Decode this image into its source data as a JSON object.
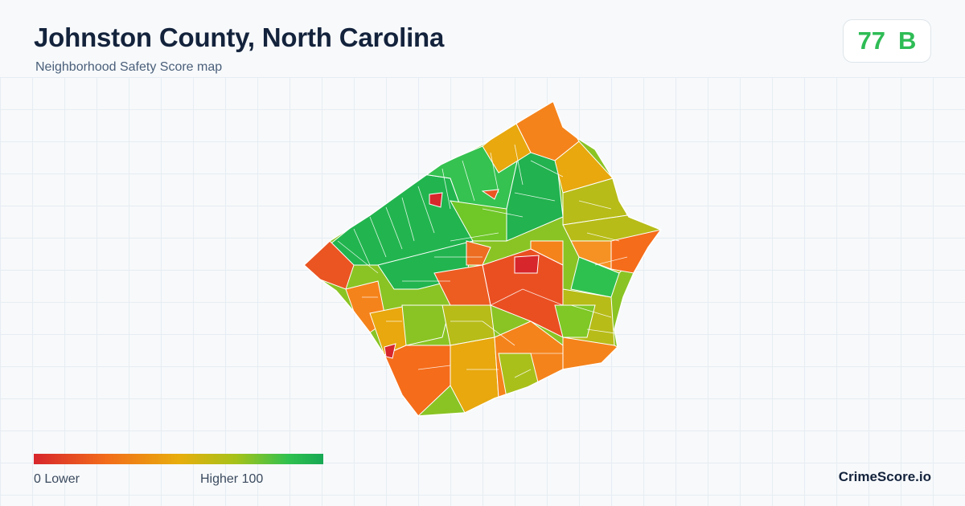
{
  "header": {
    "title": "Johnston County, North Carolina",
    "subtitle": "Neighborhood Safety Score map"
  },
  "score": {
    "value": "77",
    "grade": "B"
  },
  "legend": {
    "min_label": "0  Lower",
    "max_label": "Higher  100"
  },
  "brand": "CrimeScore.io",
  "colors": {
    "red": "#d7262c",
    "orange_red": "#ea5522",
    "orange": "#f5831b",
    "amber": "#e8a80e",
    "olive": "#b7bc18",
    "lime": "#7fc825",
    "green": "#2fc14f",
    "dark_green": "#17a854",
    "score_green": "#2ebc55"
  }
}
